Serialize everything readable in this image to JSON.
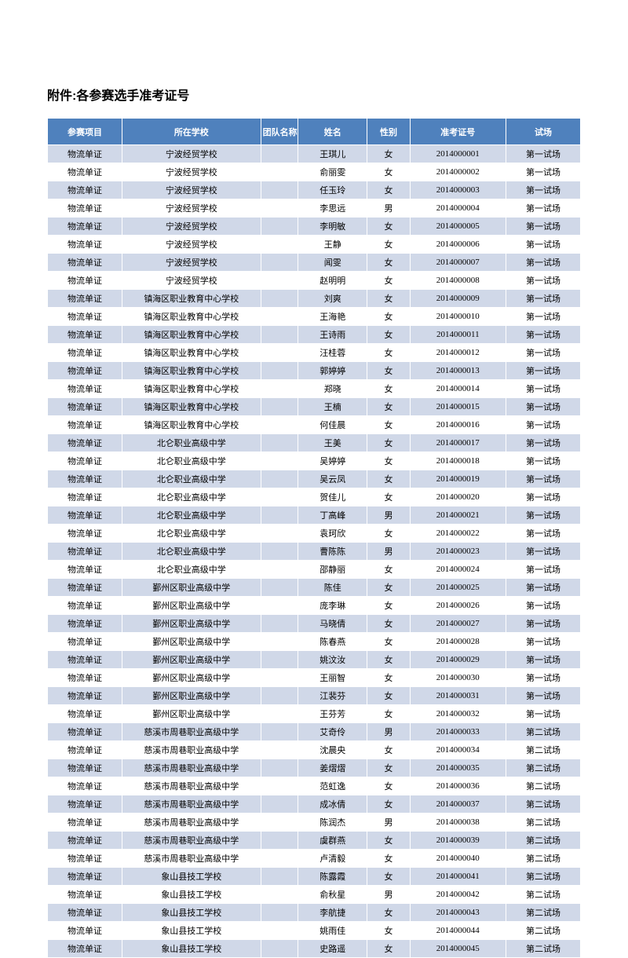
{
  "title": "附件:各参赛选手准考证号",
  "columns": [
    "参赛项目",
    "所在学校",
    "团队名称",
    "姓名",
    "性别",
    "准考证号",
    "试场"
  ],
  "header_bg": "#4f81bd",
  "header_fg": "#ffffff",
  "row_odd_bg": "#d0d8e8",
  "row_even_bg": "#ffffff",
  "border_color": "#ffffff",
  "title_font": "SimHei",
  "title_fontsize": 16,
  "cell_fontsize": 11,
  "column_widths_pct": [
    14,
    26,
    7,
    13,
    8,
    18,
    14
  ],
  "rows": [
    [
      "物流单证",
      "宁波经贸学校",
      "",
      "王琪儿",
      "女",
      "2014000001",
      "第一试场"
    ],
    [
      "物流单证",
      "宁波经贸学校",
      "",
      "俞丽雯",
      "女",
      "2014000002",
      "第一试场"
    ],
    [
      "物流单证",
      "宁波经贸学校",
      "",
      "任玉玲",
      "女",
      "2014000003",
      "第一试场"
    ],
    [
      "物流单证",
      "宁波经贸学校",
      "",
      "李思远",
      "男",
      "2014000004",
      "第一试场"
    ],
    [
      "物流单证",
      "宁波经贸学校",
      "",
      "李明敏",
      "女",
      "2014000005",
      "第一试场"
    ],
    [
      "物流单证",
      "宁波经贸学校",
      "",
      "王静",
      "女",
      "2014000006",
      "第一试场"
    ],
    [
      "物流单证",
      "宁波经贸学校",
      "",
      "闻雯",
      "女",
      "2014000007",
      "第一试场"
    ],
    [
      "物流单证",
      "宁波经贸学校",
      "",
      "赵明明",
      "女",
      "2014000008",
      "第一试场"
    ],
    [
      "物流单证",
      "镇海区职业教育中心学校",
      "",
      "刘爽",
      "女",
      "2014000009",
      "第一试场"
    ],
    [
      "物流单证",
      "镇海区职业教育中心学校",
      "",
      "王海艳",
      "女",
      "2014000010",
      "第一试场"
    ],
    [
      "物流单证",
      "镇海区职业教育中心学校",
      "",
      "王诗雨",
      "女",
      "2014000011",
      "第一试场"
    ],
    [
      "物流单证",
      "镇海区职业教育中心学校",
      "",
      "汪桂蓉",
      "女",
      "2014000012",
      "第一试场"
    ],
    [
      "物流单证",
      "镇海区职业教育中心学校",
      "",
      "郭婷婷",
      "女",
      "2014000013",
      "第一试场"
    ],
    [
      "物流单证",
      "镇海区职业教育中心学校",
      "",
      "郑晓",
      "女",
      "2014000014",
      "第一试场"
    ],
    [
      "物流单证",
      "镇海区职业教育中心学校",
      "",
      "王楠",
      "女",
      "2014000015",
      "第一试场"
    ],
    [
      "物流单证",
      "镇海区职业教育中心学校",
      "",
      "何佳晨",
      "女",
      "2014000016",
      "第一试场"
    ],
    [
      "物流单证",
      "北仑职业高级中学",
      "",
      "王美",
      "女",
      "2014000017",
      "第一试场"
    ],
    [
      "物流单证",
      "北仑职业高级中学",
      "",
      "吴婷婷",
      "女",
      "2014000018",
      "第一试场"
    ],
    [
      "物流单证",
      "北仑职业高级中学",
      "",
      "吴云凤",
      "女",
      "2014000019",
      "第一试场"
    ],
    [
      "物流单证",
      "北仑职业高级中学",
      "",
      "贺佳儿",
      "女",
      "2014000020",
      "第一试场"
    ],
    [
      "物流单证",
      "北仑职业高级中学",
      "",
      "丁高峰",
      "男",
      "2014000021",
      "第一试场"
    ],
    [
      "物流单证",
      "北仑职业高级中学",
      "",
      "袁珂欣",
      "女",
      "2014000022",
      "第一试场"
    ],
    [
      "物流单证",
      "北仑职业高级中学",
      "",
      "曹陈陈",
      "男",
      "2014000023",
      "第一试场"
    ],
    [
      "物流单证",
      "北仑职业高级中学",
      "",
      "邵静丽",
      "女",
      "2014000024",
      "第一试场"
    ],
    [
      "物流单证",
      "鄞州区职业高级中学",
      "",
      "陈佳",
      "女",
      "2014000025",
      "第一试场"
    ],
    [
      "物流单证",
      "鄞州区职业高级中学",
      "",
      "庞李琳",
      "女",
      "2014000026",
      "第一试场"
    ],
    [
      "物流单证",
      "鄞州区职业高级中学",
      "",
      "马晓倩",
      "女",
      "2014000027",
      "第一试场"
    ],
    [
      "物流单证",
      "鄞州区职业高级中学",
      "",
      "陈春燕",
      "女",
      "2014000028",
      "第一试场"
    ],
    [
      "物流单证",
      "鄞州区职业高级中学",
      "",
      "姚汶汝",
      "女",
      "2014000029",
      "第一试场"
    ],
    [
      "物流单证",
      "鄞州区职业高级中学",
      "",
      "王丽智",
      "女",
      "2014000030",
      "第一试场"
    ],
    [
      "物流单证",
      "鄞州区职业高级中学",
      "",
      "江裴芬",
      "女",
      "2014000031",
      "第一试场"
    ],
    [
      "物流单证",
      "鄞州区职业高级中学",
      "",
      "王芬芳",
      "女",
      "2014000032",
      "第一试场"
    ],
    [
      "物流单证",
      "慈溪市周巷职业高级中学",
      "",
      "艾奇伶",
      "男",
      "2014000033",
      "第二试场"
    ],
    [
      "物流单证",
      "慈溪市周巷职业高级中学",
      "",
      "沈晨央",
      "女",
      "2014000034",
      "第二试场"
    ],
    [
      "物流单证",
      "慈溪市周巷职业高级中学",
      "",
      "姜熠熠",
      "女",
      "2014000035",
      "第二试场"
    ],
    [
      "物流单证",
      "慈溪市周巷职业高级中学",
      "",
      "范虹逸",
      "女",
      "2014000036",
      "第二试场"
    ],
    [
      "物流单证",
      "慈溪市周巷职业高级中学",
      "",
      "成冰倩",
      "女",
      "2014000037",
      "第二试场"
    ],
    [
      "物流单证",
      "慈溪市周巷职业高级中学",
      "",
      "陈润杰",
      "男",
      "2014000038",
      "第二试场"
    ],
    [
      "物流单证",
      "慈溪市周巷职业高级中学",
      "",
      "虞群燕",
      "女",
      "2014000039",
      "第二试场"
    ],
    [
      "物流单证",
      "慈溪市周巷职业高级中学",
      "",
      "卢清毅",
      "女",
      "2014000040",
      "第二试场"
    ],
    [
      "物流单证",
      "象山县技工学校",
      "",
      "陈露霞",
      "女",
      "2014000041",
      "第二试场"
    ],
    [
      "物流单证",
      "象山县技工学校",
      "",
      "俞秋星",
      "男",
      "2014000042",
      "第二试场"
    ],
    [
      "物流单证",
      "象山县技工学校",
      "",
      "李航捷",
      "女",
      "2014000043",
      "第二试场"
    ],
    [
      "物流单证",
      "象山县技工学校",
      "",
      "姚雨佳",
      "女",
      "2014000044",
      "第二试场"
    ],
    [
      "物流单证",
      "象山县技工学校",
      "",
      "史路遥",
      "女",
      "2014000045",
      "第二试场"
    ]
  ]
}
